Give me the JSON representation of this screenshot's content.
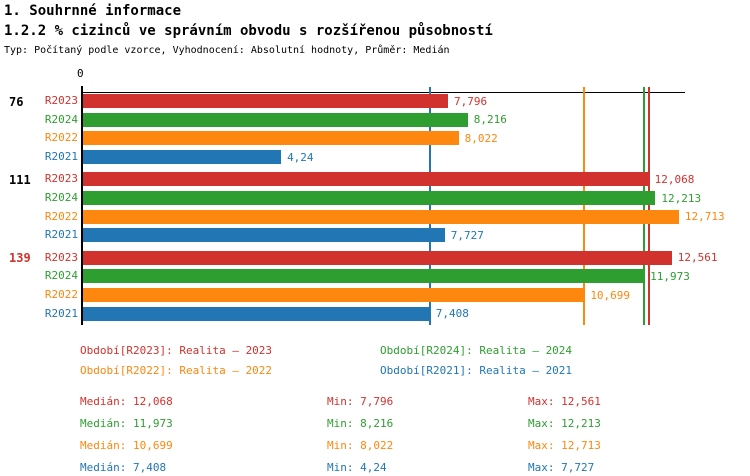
{
  "header": {
    "title": "1. Souhrnné informace",
    "subtitle": "1.2.2 % cizinců ve správním obvodu s rozšířenou působností",
    "meta": "Typ: Počítaný podle vzorce, Vyhodnocení: Absolutní hodnoty, Průměr: Medián"
  },
  "colors": {
    "R2023": "#d2322d",
    "R2024": "#2e9e30",
    "R2022": "#fd870f",
    "R2021": "#2276b4",
    "axis": "#000000",
    "group_label_default": "#000000",
    "group_label_highlight": "#d2322d"
  },
  "chart_data": {
    "type": "bar",
    "orientation": "horizontal",
    "title": "1.2.2 % cizinců ve správním obvodu s rozšířenou působností",
    "axis_zero_label": "0",
    "x_range": [
      0,
      12.87
    ],
    "grid": false,
    "series_order": [
      "R2023",
      "R2024",
      "R2022",
      "R2021"
    ],
    "groups": [
      {
        "label": "76",
        "label_color": "#000000",
        "bars": [
          {
            "series": "R2023",
            "value": 7.796,
            "display": "7,796"
          },
          {
            "series": "R2024",
            "value": 8.216,
            "display": "8,216"
          },
          {
            "series": "R2022",
            "value": 8.022,
            "display": "8,022"
          },
          {
            "series": "R2021",
            "value": 4.24,
            "display": "4,24"
          }
        ]
      },
      {
        "label": "111",
        "label_color": "#000000",
        "bars": [
          {
            "series": "R2023",
            "value": 12.068,
            "display": "12,068"
          },
          {
            "series": "R2024",
            "value": 12.213,
            "display": "12,213"
          },
          {
            "series": "R2022",
            "value": 12.713,
            "display": "12,713"
          },
          {
            "series": "R2021",
            "value": 7.727,
            "display": "7,727"
          }
        ]
      },
      {
        "label": "139",
        "label_color": "#d2322d",
        "bars": [
          {
            "series": "R2023",
            "value": 12.561,
            "display": "12,561"
          },
          {
            "series": "R2024",
            "value": 11.973,
            "display": "11,973"
          },
          {
            "series": "R2022",
            "value": 10.699,
            "display": "10,699"
          },
          {
            "series": "R2021",
            "value": 7.408,
            "display": "7,408"
          }
        ]
      }
    ],
    "median_lines": [
      {
        "series": "R2021",
        "value": 7.408
      },
      {
        "series": "R2022",
        "value": 10.699
      },
      {
        "series": "R2024",
        "value": 11.973
      },
      {
        "series": "R2023",
        "value": 12.068
      }
    ]
  },
  "legend": {
    "items": [
      {
        "series": "R2023",
        "label": "Období[R2023]: Realita – 2023"
      },
      {
        "series": "R2024",
        "label": "Období[R2024]: Realita – 2024"
      },
      {
        "series": "R2022",
        "label": "Období[R2022]: Realita – 2022"
      },
      {
        "series": "R2021",
        "label": "Období[R2021]: Realita – 2021"
      }
    ]
  },
  "stats": {
    "rows": [
      {
        "series": "R2023",
        "median_text": "Medián: 12,068",
        "min_text": "Min: 7,796",
        "max_text": "Max: 12,561"
      },
      {
        "series": "R2024",
        "median_text": "Medián: 11,973",
        "min_text": "Min: 8,216",
        "max_text": "Max: 12,213"
      },
      {
        "series": "R2022",
        "median_text": "Medián: 10,699",
        "min_text": "Min: 8,022",
        "max_text": "Max: 12,713"
      },
      {
        "series": "R2021",
        "median_text": "Medián: 7,408",
        "min_text": "Min: 4,24",
        "max_text": "Max: 7,727"
      }
    ]
  }
}
